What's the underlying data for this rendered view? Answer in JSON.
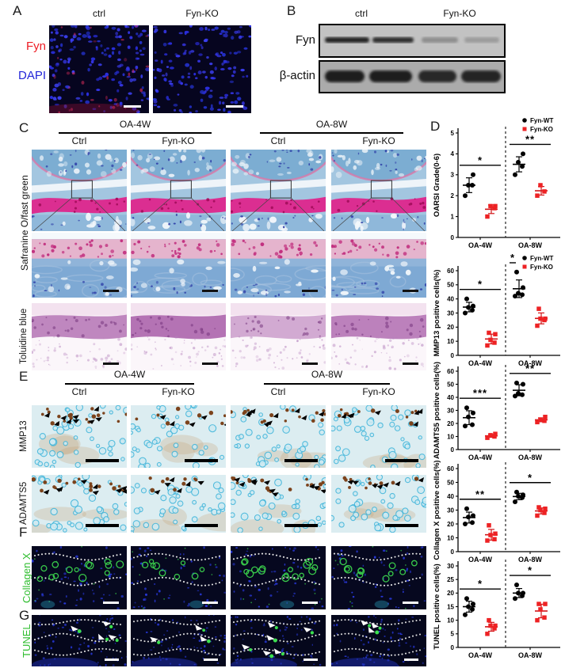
{
  "colors": {
    "fyn_label_red": "#ed1c24",
    "dapi_label_blue": "#2326d8",
    "green_label": "#2ebd2e",
    "fyn_wt_marker": "#000000",
    "fyn_ko_marker": "#ed2224"
  },
  "panelA": {
    "label": "A",
    "col_headers": [
      "ctrl",
      "Fyn-KO"
    ],
    "stain_labels": [
      {
        "text": "Fyn",
        "color": "#ed1c24"
      },
      {
        "text": "DAPI",
        "color": "#2326d8"
      }
    ]
  },
  "panelB": {
    "label": "B",
    "col_headers": [
      "ctrl",
      "Fyn-KO"
    ],
    "row_labels": [
      "Fyn",
      "β-actin"
    ]
  },
  "panelC": {
    "label": "C",
    "group_headers": [
      "OA-4W",
      "OA-8W"
    ],
    "col_headers": [
      "Ctrl",
      "Fyn-KO",
      "Ctrl",
      "Fyn-KO"
    ],
    "row_labels": [
      "Safranine O/fast green",
      "Toluidine blue"
    ]
  },
  "panelD": {
    "label": "D"
  },
  "panelE": {
    "label": "E",
    "group_headers": [
      "OA-4W",
      "OA-8W"
    ],
    "col_headers": [
      "Ctrl",
      "Fyn-KO",
      "Ctrl",
      "Fyn-KO"
    ],
    "row_labels": [
      "MMP13",
      "ADAMTS5"
    ]
  },
  "panelF": {
    "label": "F",
    "row_label": "Collagen X"
  },
  "panelG": {
    "label": "G",
    "row_label": "TUNEL"
  },
  "chart_data": [
    {
      "type": "scatter",
      "title": "",
      "ylabel": "OARSI Grade(0-6)",
      "ylim": [
        0,
        5
      ],
      "ytick_step": 1,
      "categories": [
        "OA-4W",
        "OA-8W"
      ],
      "series": [
        {
          "name": "Fyn-WT",
          "marker": "circle",
          "color": "#000000",
          "groups": [
            [
              2.0,
              2.5,
              2.5,
              3.0
            ],
            [
              3.0,
              3.4,
              3.6,
              4.0
            ]
          ]
        },
        {
          "name": "Fyn-KO",
          "marker": "square",
          "color": "#ed2224",
          "groups": [
            [
              1.0,
              1.4,
              1.5,
              1.5
            ],
            [
              2.0,
              2.2,
              2.5
            ]
          ]
        }
      ],
      "significance": [
        "*",
        "**"
      ],
      "legend": true,
      "legend_position": "top-right",
      "grid": false
    },
    {
      "type": "scatter",
      "ylabel": "MMP13 positive cells(%)",
      "ylim": [
        0,
        60
      ],
      "ytick_step": 10,
      "categories": [
        "OA-4W",
        "OA-8W"
      ],
      "series": [
        {
          "name": "Fyn-WT",
          "marker": "circle",
          "color": "#000000",
          "groups": [
            [
              30,
              32,
              34,
              35,
              40
            ],
            [
              42,
              43,
              44,
              48,
              59
            ]
          ]
        },
        {
          "name": "Fyn-KO",
          "marker": "square",
          "color": "#ed2224",
          "groups": [
            [
              7,
              9,
              11,
              15,
              16
            ],
            [
              21,
              25,
              26,
              26,
              33
            ]
          ]
        }
      ],
      "significance": [
        "*",
        "*"
      ],
      "legend": true,
      "legend_position": "top-right",
      "grid": false
    },
    {
      "type": "scatter",
      "ylabel": "ADAMTS5 positive cells(%)",
      "ylim": [
        0,
        60
      ],
      "ytick_step": 10,
      "categories": [
        "OA-4W",
        "OA-8W"
      ],
      "series": [
        {
          "name": "Fyn-WT",
          "marker": "circle",
          "color": "#000000",
          "groups": [
            [
              18,
              19,
              25,
              28,
              32
            ],
            [
              41,
              42,
              43,
              50,
              51
            ]
          ]
        },
        {
          "name": "Fyn-KO",
          "marker": "square",
          "color": "#ed2224",
          "groups": [
            [
              9,
              10,
              11,
              12
            ],
            [
              21,
              22,
              23,
              25
            ]
          ]
        }
      ],
      "significance": [
        "***",
        "**"
      ],
      "legend": false,
      "grid": false
    },
    {
      "type": "scatter",
      "ylabel": "Collagen X positive cells(%)",
      "ylim": [
        0,
        60
      ],
      "ytick_step": 10,
      "categories": [
        "OA-4W",
        "OA-8W"
      ],
      "series": [
        {
          "name": "Fyn-WT",
          "marker": "circle",
          "color": "#000000",
          "groups": [
            [
              20,
              21,
              25,
              26,
              31
            ],
            [
              36,
              39,
              40,
              41,
              43
            ]
          ]
        },
        {
          "name": "Fyn-KO",
          "marker": "square",
          "color": "#ed2224",
          "groups": [
            [
              8,
              9,
              12,
              13,
              19
            ],
            [
              26,
              28,
              30,
              31,
              32
            ]
          ]
        }
      ],
      "significance": [
        "**",
        "*"
      ],
      "legend": false,
      "grid": false
    },
    {
      "type": "scatter",
      "ylabel": "TUNEL positive cells(%)",
      "ylim": [
        0,
        30
      ],
      "ytick_step": 5,
      "categories": [
        "OA-4W",
        "OA-8W"
      ],
      "series": [
        {
          "name": "Fyn-WT",
          "marker": "circle",
          "color": "#000000",
          "groups": [
            [
              12,
              14,
              15,
              16,
              18
            ],
            [
              18,
              19,
              20,
              20,
              23
            ]
          ]
        },
        {
          "name": "Fyn-KO",
          "marker": "square",
          "color": "#ed2224",
          "groups": [
            [
              5,
              7,
              8,
              8,
              10
            ],
            [
              10,
              11,
              14,
              16,
              16
            ]
          ]
        }
      ],
      "significance": [
        "*",
        "*"
      ],
      "legend": false,
      "grid": false
    }
  ]
}
